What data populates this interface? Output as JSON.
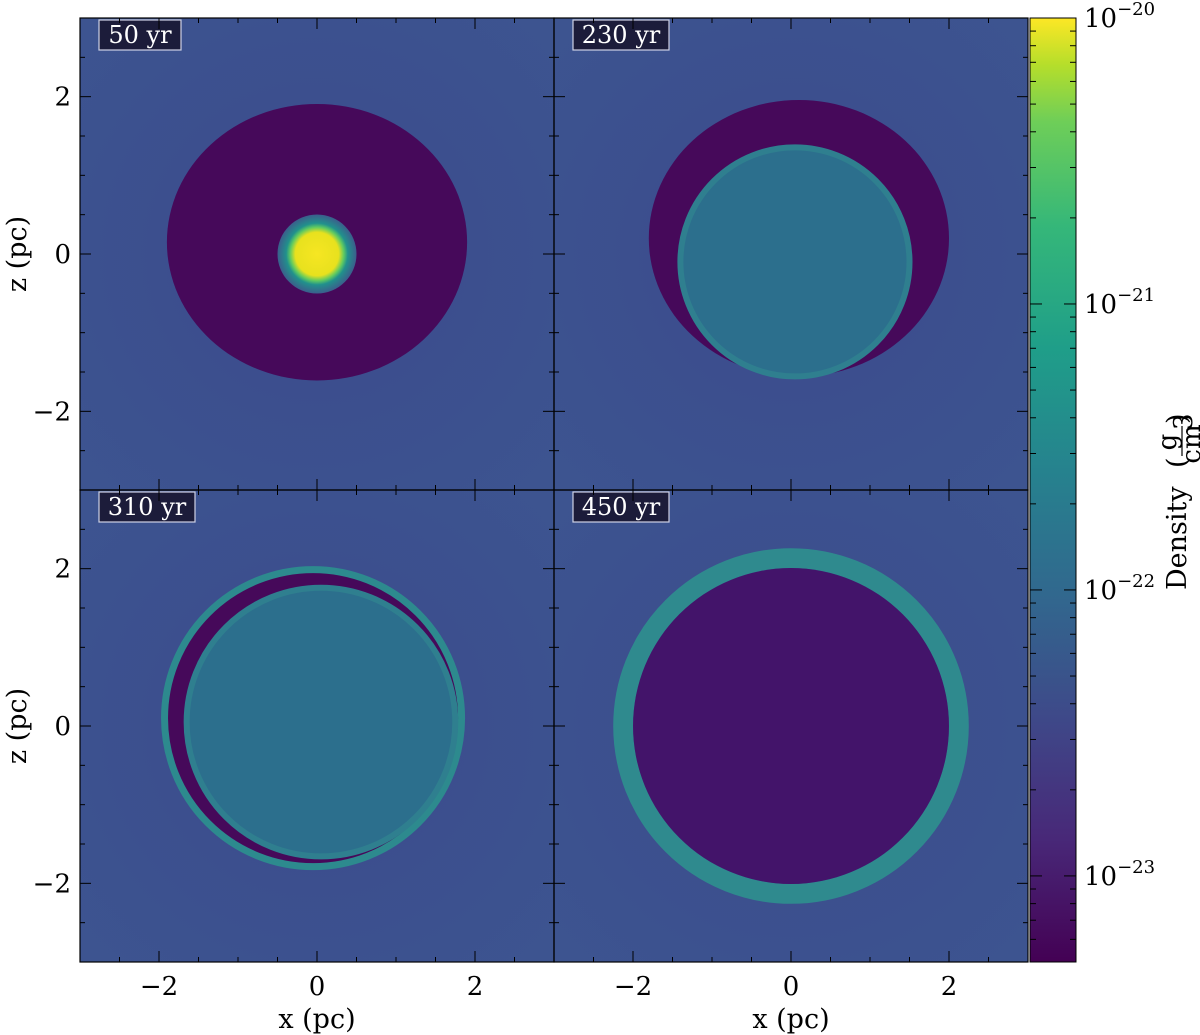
{
  "chart_data": {
    "type": "heatmap",
    "title": "",
    "colormap": "viridis",
    "scale": "log",
    "xlabel": "x  (pc)",
    "ylabel": "z  (pc)",
    "xlim": [
      -3,
      3
    ],
    "ylim": [
      -3,
      3
    ],
    "x_ticks": [
      -2,
      0,
      2
    ],
    "y_ticks": [
      -2,
      0,
      2
    ],
    "x_tick_labels": [
      "−2",
      "0",
      "2"
    ],
    "y_tick_labels": [
      "−2",
      "0",
      "2"
    ],
    "panels": [
      {
        "label": "50 yr",
        "row": 0,
        "col": 0,
        "cavity": {
          "cx": 0.0,
          "cz": 0.15,
          "rx": 1.9,
          "rz": 1.75
        },
        "core": {
          "cx": 0.0,
          "cz": 0.0,
          "r": 0.5
        }
      },
      {
        "label": "230 yr",
        "row": 0,
        "col": 1,
        "cavity": {
          "cx": 0.1,
          "cz": 0.2,
          "rx": 1.9,
          "rz": 1.75
        },
        "blob": {
          "cx": 0.05,
          "cz": -0.1,
          "r": 1.45
        }
      },
      {
        "label": "310 yr",
        "row": 1,
        "col": 0,
        "shell": {
          "cx": -0.05,
          "cz": 0.1,
          "r": 1.88
        },
        "blob": {
          "cx": 0.05,
          "cz": 0.05,
          "r": 1.7
        }
      },
      {
        "label": "450 yr",
        "row": 1,
        "col": 1,
        "shell": {
          "cx": 0.0,
          "cz": 0.0,
          "r": 2.2
        },
        "inner": {
          "cx": 0.0,
          "cz": 0.0,
          "r": 2.05
        }
      }
    ],
    "colorbar": {
      "label": "Density",
      "unit_numerator": "g",
      "unit_denominator": "cm",
      "unit_denominator_exponent": "3",
      "range": [
        5e-24,
        1e-20
      ],
      "ticks": [
        {
          "value": 1e-20,
          "base": "10",
          "exp": "−20"
        },
        {
          "value": 1e-21,
          "base": "10",
          "exp": "−21"
        },
        {
          "value": 1e-22,
          "base": "10",
          "exp": "−22"
        },
        {
          "value": 1e-23,
          "base": "10",
          "exp": "−23"
        }
      ]
    },
    "colors": {
      "background_low": "#3a4a8c",
      "cavity_dark": "#46095a",
      "teal_mid": "#2a7f8e",
      "yellow_high": "#f6e622"
    }
  }
}
